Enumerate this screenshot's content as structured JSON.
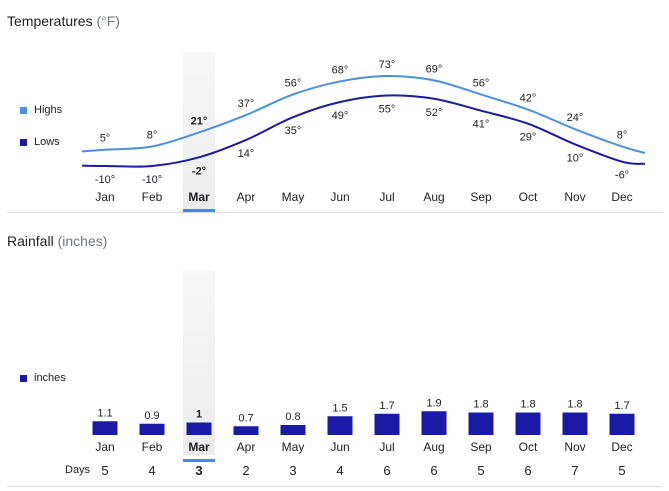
{
  "temperatures": {
    "title": "Temperatures",
    "unit": "(°F)",
    "legend": [
      {
        "label": "Highs",
        "color": "#4a90e2"
      },
      {
        "label": "Lows",
        "color": "#1a1aa6"
      }
    ]
  },
  "rainfall": {
    "title": "Rainfall",
    "unit": "(inches)",
    "legend": [
      {
        "label": "inches",
        "color": "#1a1aa6"
      }
    ],
    "days_label": "Days",
    "days": [
      "5",
      "4",
      "3",
      "2",
      "3",
      "4",
      "6",
      "6",
      "5",
      "6",
      "7",
      "5"
    ]
  },
  "selected_month_index": 2,
  "chart_data": [
    {
      "type": "line",
      "title": "Temperatures",
      "unit": "°F",
      "categories": [
        "Jan",
        "Feb",
        "Mar",
        "Apr",
        "May",
        "Jun",
        "Jul",
        "Aug",
        "Sep",
        "Oct",
        "Nov",
        "Dec"
      ],
      "series": [
        {
          "name": "Highs",
          "color": "#4a90e2",
          "values": [
            5,
            8,
            21,
            37,
            56,
            68,
            73,
            69,
            56,
            42,
            24,
            8
          ],
          "labels": [
            "5°",
            "8°",
            "21°",
            "37°",
            "56°",
            "68°",
            "73°",
            "69°",
            "56°",
            "42°",
            "24°",
            "8°"
          ]
        },
        {
          "name": "Lows",
          "color": "#1a1aa6",
          "values": [
            -10,
            -10,
            -2,
            14,
            35,
            49,
            55,
            52,
            41,
            29,
            10,
            -6
          ],
          "labels": [
            "-10°",
            "-10°",
            "-2°",
            "14°",
            "35°",
            "49°",
            "55°",
            "52°",
            "41°",
            "29°",
            "10°",
            "-6°"
          ]
        }
      ]
    },
    {
      "type": "bar",
      "title": "Rainfall",
      "unit": "inches",
      "categories": [
        "Jan",
        "Feb",
        "Mar",
        "Apr",
        "May",
        "Jun",
        "Jul",
        "Aug",
        "Sep",
        "Oct",
        "Nov",
        "Dec"
      ],
      "series": [
        {
          "name": "inches",
          "color": "#1a1aa6",
          "values": [
            1.1,
            0.9,
            1,
            0.7,
            0.8,
            1.5,
            1.7,
            1.9,
            1.8,
            1.8,
            1.8,
            1.7
          ],
          "labels": [
            "1.1",
            "0.9",
            "1",
            "0.7",
            "0.8",
            "1.5",
            "1.7",
            "1.9",
            "1.8",
            "1.8",
            "1.8",
            "1.7"
          ]
        }
      ]
    }
  ]
}
